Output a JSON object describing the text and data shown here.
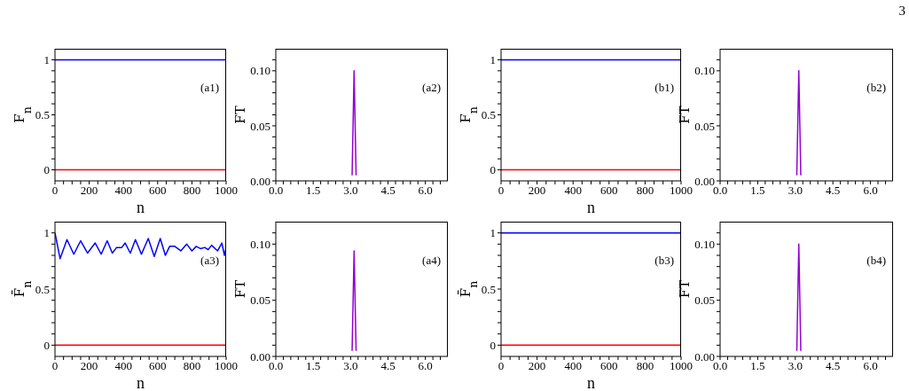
{
  "chart_data": [
    {
      "type": "line",
      "ylabel": "F$_{n}$",
      "xlabel": "n",
      "annotations": [
        "(a1)"
      ],
      "grid": false,
      "marker": "none",
      "line_style": "solid",
      "xlim": [
        0,
        1000
      ],
      "ylim": [
        -0.1,
        1.1
      ],
      "xticks": [
        0,
        {
          "value": 50,
          "label": null
        },
        {
          "value": 100,
          "label": null
        },
        {
          "value": 150,
          "label": null
        },
        200,
        {
          "value": 250,
          "label": null
        },
        {
          "value": 300,
          "label": null
        },
        {
          "value": 350,
          "label": null
        },
        400,
        {
          "value": 450,
          "label": null
        },
        {
          "value": 500,
          "label": null
        },
        {
          "value": 550,
          "label": null
        },
        600,
        {
          "value": 650,
          "label": null
        },
        {
          "value": 700,
          "label": null
        },
        {
          "value": 750,
          "label": null
        },
        800,
        {
          "value": 850,
          "label": null
        },
        {
          "value": 900,
          "label": null
        },
        {
          "value": 950,
          "label": null
        },
        1000
      ],
      "yticks": [
        0,
        {
          "value": 0.1,
          "label": null
        },
        {
          "value": 0.2,
          "label": null
        },
        {
          "value": 0.3,
          "label": null
        },
        {
          "value": 0.4,
          "label": null
        },
        0.5,
        {
          "value": 0.6,
          "label": null
        },
        {
          "value": 0.7,
          "label": null
        },
        {
          "value": 0.8,
          "label": null
        },
        {
          "value": 0.9,
          "label": null
        },
        1
      ],
      "series": [
        {
          "color": "#0000ff",
          "x": [
            0,
            1000
          ],
          "values": [
            1,
            1
          ]
        },
        {
          "color": "#ff0000",
          "x": [
            0,
            1000
          ],
          "values": [
            0,
            0
          ]
        }
      ]
    },
    {
      "type": "line",
      "ylabel": "FT",
      "annotations": [
        "(a2)"
      ],
      "grid": false,
      "marker": "none",
      "line_style": "solid",
      "xlim": [
        0,
        6.9
      ],
      "ylim": [
        0,
        0.12
      ],
      "xticks": [
        {
          "value": 0,
          "label": "0.0"
        },
        {
          "value": 0.3,
          "label": null
        },
        {
          "value": 0.6,
          "label": null
        },
        {
          "value": 0.9,
          "label": null
        },
        {
          "value": 1.2,
          "label": null
        },
        1.5,
        {
          "value": 1.8,
          "label": null
        },
        {
          "value": 2.1,
          "label": null
        },
        {
          "value": 2.4,
          "label": null
        },
        {
          "value": 2.7,
          "label": null
        },
        {
          "value": 3,
          "label": "3.0"
        },
        {
          "value": 3.3,
          "label": null
        },
        {
          "value": 3.6,
          "label": null
        },
        {
          "value": 3.9,
          "label": null
        },
        {
          "value": 4.2,
          "label": null
        },
        4.5,
        {
          "value": 4.8,
          "label": null
        },
        {
          "value": 5.1,
          "label": null
        },
        {
          "value": 5.4,
          "label": null
        },
        {
          "value": 5.7,
          "label": null
        },
        {
          "value": 6,
          "label": "6.0"
        },
        {
          "value": 6.3,
          "label": null
        },
        {
          "value": 6.6,
          "label": null
        }
      ],
      "yticks": [
        {
          "value": 0,
          "label": "0.00"
        },
        {
          "value": 0.01,
          "label": null
        },
        {
          "value": 0.02,
          "label": null
        },
        {
          "value": 0.03,
          "label": null
        },
        {
          "value": 0.04,
          "label": null
        },
        0.05,
        {
          "value": 0.06,
          "label": null
        },
        {
          "value": 0.07,
          "label": null
        },
        {
          "value": 0.08,
          "label": null
        },
        {
          "value": 0.09,
          "label": null
        },
        {
          "value": 0.1,
          "label": "0.10"
        },
        {
          "value": 0.11,
          "label": null
        }
      ],
      "series": [
        {
          "color": "#9400d3",
          "x": [
            3.06,
            3.14,
            3.22
          ],
          "values": [
            0.005,
            0.1,
            0.005
          ]
        }
      ]
    },
    {
      "type": "line",
      "ylabel": "F$_{n}$",
      "xlabel": "n",
      "annotations": [
        "(b1)"
      ],
      "grid": false,
      "marker": "none",
      "line_style": "solid",
      "xlim": [
        0,
        1000
      ],
      "ylim": [
        -0.1,
        1.1
      ],
      "xticks": [
        0,
        {
          "value": 50,
          "label": null
        },
        {
          "value": 100,
          "label": null
        },
        {
          "value": 150,
          "label": null
        },
        200,
        {
          "value": 250,
          "label": null
        },
        {
          "value": 300,
          "label": null
        },
        {
          "value": 350,
          "label": null
        },
        400,
        {
          "value": 450,
          "label": null
        },
        {
          "value": 500,
          "label": null
        },
        {
          "value": 550,
          "label": null
        },
        600,
        {
          "value": 650,
          "label": null
        },
        {
          "value": 700,
          "label": null
        },
        {
          "value": 750,
          "label": null
        },
        800,
        {
          "value": 850,
          "label": null
        },
        {
          "value": 900,
          "label": null
        },
        {
          "value": 950,
          "label": null
        },
        1000
      ],
      "yticks": [
        0,
        {
          "value": 0.1,
          "label": null
        },
        {
          "value": 0.2,
          "label": null
        },
        {
          "value": 0.3,
          "label": null
        },
        {
          "value": 0.4,
          "label": null
        },
        0.5,
        {
          "value": 0.6,
          "label": null
        },
        {
          "value": 0.7,
          "label": null
        },
        {
          "value": 0.8,
          "label": null
        },
        {
          "value": 0.9,
          "label": null
        },
        1
      ],
      "series": [
        {
          "color": "#0000ff",
          "x": [
            0,
            1000
          ],
          "values": [
            1,
            1
          ]
        },
        {
          "color": "#ff0000",
          "x": [
            0,
            1000
          ],
          "values": [
            0,
            0
          ]
        }
      ]
    },
    {
      "type": "line",
      "ylabel": "FT",
      "annotations": [
        "(b2)",
        "3"
      ],
      "grid": false,
      "marker": "none",
      "line_style": "solid",
      "xlim": [
        0,
        6.9
      ],
      "ylim": [
        0,
        0.12
      ],
      "xticks": [
        {
          "value": 0,
          "label": "0.0"
        },
        {
          "value": 0.3,
          "label": null
        },
        {
          "value": 0.6,
          "label": null
        },
        {
          "value": 0.9,
          "label": null
        },
        {
          "value": 1.2,
          "label": null
        },
        1.5,
        {
          "value": 1.8,
          "label": null
        },
        {
          "value": 2.1,
          "label": null
        },
        {
          "value": 2.4,
          "label": null
        },
        {
          "value": 2.7,
          "label": null
        },
        {
          "value": 3,
          "label": "3.0"
        },
        {
          "value": 3.3,
          "label": null
        },
        {
          "value": 3.6,
          "label": null
        },
        {
          "value": 3.9,
          "label": null
        },
        {
          "value": 4.2,
          "label": null
        },
        4.5,
        {
          "value": 4.8,
          "label": null
        },
        {
          "value": 5.1,
          "label": null
        },
        {
          "value": 5.4,
          "label": null
        },
        {
          "value": 5.7,
          "label": null
        },
        {
          "value": 6,
          "label": "6.0"
        },
        {
          "value": 6.3,
          "label": null
        },
        {
          "value": 6.6,
          "label": null
        }
      ],
      "yticks": [
        {
          "value": 0,
          "label": "0.00"
        },
        {
          "value": 0.01,
          "label": null
        },
        {
          "value": 0.02,
          "label": null
        },
        {
          "value": 0.03,
          "label": null
        },
        {
          "value": 0.04,
          "label": null
        },
        0.05,
        {
          "value": 0.06,
          "label": null
        },
        {
          "value": 0.07,
          "label": null
        },
        {
          "value": 0.08,
          "label": null
        },
        {
          "value": 0.09,
          "label": null
        },
        {
          "value": 0.1,
          "label": "0.10"
        },
        {
          "value": 0.11,
          "label": null
        }
      ],
      "series": [
        {
          "color": "#9400d3",
          "x": [
            3.06,
            3.14,
            3.22
          ],
          "values": [
            0.005,
            0.1,
            0.005
          ]
        }
      ]
    },
    {
      "type": "line",
      "ylabel": "F̄$_{n}$",
      "xlabel": "n",
      "annotations": [
        "(a3)"
      ],
      "grid": false,
      "marker": "none",
      "line_style": "solid",
      "xlim": [
        0,
        1000
      ],
      "ylim": [
        -0.1,
        1.1
      ],
      "xticks": [
        0,
        {
          "value": 50,
          "label": null
        },
        {
          "value": 100,
          "label": null
        },
        {
          "value": 150,
          "label": null
        },
        200,
        {
          "value": 250,
          "label": null
        },
        {
          "value": 300,
          "label": null
        },
        {
          "value": 350,
          "label": null
        },
        400,
        {
          "value": 450,
          "label": null
        },
        {
          "value": 500,
          "label": null
        },
        {
          "value": 550,
          "label": null
        },
        600,
        {
          "value": 650,
          "label": null
        },
        {
          "value": 700,
          "label": null
        },
        {
          "value": 750,
          "label": null
        },
        800,
        {
          "value": 850,
          "label": null
        },
        {
          "value": 900,
          "label": null
        },
        {
          "value": 950,
          "label": null
        },
        1000
      ],
      "yticks": [
        0,
        {
          "value": 0.1,
          "label": null
        },
        {
          "value": 0.2,
          "label": null
        },
        {
          "value": 0.3,
          "label": null
        },
        {
          "value": 0.4,
          "label": null
        },
        0.5,
        {
          "value": 0.6,
          "label": null
        },
        {
          "value": 0.7,
          "label": null
        },
        {
          "value": 0.8,
          "label": null
        },
        {
          "value": 0.9,
          "label": null
        },
        1
      ],
      "series": [
        {
          "color": "#0000ff",
          "x": [
            0,
            30,
            70,
            110,
            150,
            190,
            235,
            270,
            305,
            335,
            360,
            390,
            410,
            440,
            470,
            505,
            545,
            580,
            615,
            645,
            670,
            700,
            735,
            770,
            800,
            825,
            850,
            875,
            895,
            915,
            950,
            975,
            990,
            1000
          ],
          "values": [
            1,
            0.77,
            0.94,
            0.81,
            0.93,
            0.82,
            0.91,
            0.81,
            0.93,
            0.82,
            0.87,
            0.87,
            0.91,
            0.82,
            0.94,
            0.81,
            0.95,
            0.79,
            0.95,
            0.8,
            0.88,
            0.88,
            0.84,
            0.9,
            0.84,
            0.88,
            0.86,
            0.87,
            0.85,
            0.89,
            0.84,
            0.91,
            0.8,
            0.87
          ]
        },
        {
          "color": "#ff0000",
          "x": [
            0,
            1000
          ],
          "values": [
            0,
            0
          ]
        }
      ]
    },
    {
      "type": "line",
      "ylabel": "FT",
      "annotations": [
        "(a4)"
      ],
      "grid": false,
      "marker": "none",
      "line_style": "solid",
      "xlim": [
        0,
        6.9
      ],
      "ylim": [
        0,
        0.12
      ],
      "xticks": [
        {
          "value": 0,
          "label": "0.0"
        },
        {
          "value": 0.3,
          "label": null
        },
        {
          "value": 0.6,
          "label": null
        },
        {
          "value": 0.9,
          "label": null
        },
        {
          "value": 1.2,
          "label": null
        },
        1.5,
        {
          "value": 1.8,
          "label": null
        },
        {
          "value": 2.1,
          "label": null
        },
        {
          "value": 2.4,
          "label": null
        },
        {
          "value": 2.7,
          "label": null
        },
        {
          "value": 3,
          "label": "3.0"
        },
        {
          "value": 3.3,
          "label": null
        },
        {
          "value": 3.6,
          "label": null
        },
        {
          "value": 3.9,
          "label": null
        },
        {
          "value": 4.2,
          "label": null
        },
        4.5,
        {
          "value": 4.8,
          "label": null
        },
        {
          "value": 5.1,
          "label": null
        },
        {
          "value": 5.4,
          "label": null
        },
        {
          "value": 5.7,
          "label": null
        },
        {
          "value": 6,
          "label": "6.0"
        },
        {
          "value": 6.3,
          "label": null
        },
        {
          "value": 6.6,
          "label": null
        }
      ],
      "yticks": [
        {
          "value": 0,
          "label": "0.00"
        },
        {
          "value": 0.01,
          "label": null
        },
        {
          "value": 0.02,
          "label": null
        },
        {
          "value": 0.03,
          "label": null
        },
        {
          "value": 0.04,
          "label": null
        },
        0.05,
        {
          "value": 0.06,
          "label": null
        },
        {
          "value": 0.07,
          "label": null
        },
        {
          "value": 0.08,
          "label": null
        },
        {
          "value": 0.09,
          "label": null
        },
        {
          "value": 0.1,
          "label": "0.10"
        },
        {
          "value": 0.11,
          "label": null
        }
      ],
      "series": [
        {
          "color": "#9400d3",
          "x": [
            3.06,
            3.14,
            3.22
          ],
          "values": [
            0.005,
            0.094,
            0.005
          ]
        }
      ]
    },
    {
      "type": "line",
      "ylabel": "F̄$_{n}$",
      "xlabel": "n",
      "annotations": [
        "(b3)"
      ],
      "grid": false,
      "marker": "none",
      "line_style": "solid",
      "xlim": [
        0,
        1000
      ],
      "ylim": [
        -0.1,
        1.1
      ],
      "xticks": [
        0,
        {
          "value": 50,
          "label": null
        },
        {
          "value": 100,
          "label": null
        },
        {
          "value": 150,
          "label": null
        },
        200,
        {
          "value": 250,
          "label": null
        },
        {
          "value": 300,
          "label": null
        },
        {
          "value": 350,
          "label": null
        },
        400,
        {
          "value": 450,
          "label": null
        },
        {
          "value": 500,
          "label": null
        },
        {
          "value": 550,
          "label": null
        },
        600,
        {
          "value": 650,
          "label": null
        },
        {
          "value": 700,
          "label": null
        },
        {
          "value": 750,
          "label": null
        },
        800,
        {
          "value": 850,
          "label": null
        },
        {
          "value": 900,
          "label": null
        },
        {
          "value": 950,
          "label": null
        },
        1000
      ],
      "yticks": [
        0,
        {
          "value": 0.1,
          "label": null
        },
        {
          "value": 0.2,
          "label": null
        },
        {
          "value": 0.3,
          "label": null
        },
        {
          "value": 0.4,
          "label": null
        },
        0.5,
        {
          "value": 0.6,
          "label": null
        },
        {
          "value": 0.7,
          "label": null
        },
        {
          "value": 0.8,
          "label": null
        },
        {
          "value": 0.9,
          "label": null
        },
        1
      ],
      "series": [
        {
          "color": "#0000ff",
          "x": [
            0,
            1000
          ],
          "values": [
            1,
            1
          ]
        },
        {
          "color": "#ff0000",
          "x": [
            0,
            1000
          ],
          "values": [
            0,
            0
          ]
        }
      ]
    },
    {
      "type": "line",
      "ylabel": "FT",
      "annotations": [
        "(b4)"
      ],
      "grid": false,
      "marker": "none",
      "line_style": "solid",
      "xlim": [
        0,
        6.9
      ],
      "ylim": [
        0,
        0.12
      ],
      "xticks": [
        {
          "value": 0,
          "label": "0.0"
        },
        {
          "value": 0.3,
          "label": null
        },
        {
          "value": 0.6,
          "label": null
        },
        {
          "value": 0.9,
          "label": null
        },
        {
          "value": 1.2,
          "label": null
        },
        1.5,
        {
          "value": 1.8,
          "label": null
        },
        {
          "value": 2.1,
          "label": null
        },
        {
          "value": 2.4,
          "label": null
        },
        {
          "value": 2.7,
          "label": null
        },
        {
          "value": 3,
          "label": "3.0"
        },
        {
          "value": 3.3,
          "label": null
        },
        {
          "value": 3.6,
          "label": null
        },
        {
          "value": 3.9,
          "label": null
        },
        {
          "value": 4.2,
          "label": null
        },
        4.5,
        {
          "value": 4.8,
          "label": null
        },
        {
          "value": 5.1,
          "label": null
        },
        {
          "value": 5.4,
          "label": null
        },
        {
          "value": 5.7,
          "label": null
        },
        {
          "value": 6,
          "label": "6.0"
        },
        {
          "value": 6.3,
          "label": null
        },
        {
          "value": 6.6,
          "label": null
        }
      ],
      "yticks": [
        {
          "value": 0,
          "label": "0.00"
        },
        {
          "value": 0.01,
          "label": null
        },
        {
          "value": 0.02,
          "label": null
        },
        {
          "value": 0.03,
          "label": null
        },
        {
          "value": 0.04,
          "label": null
        },
        0.05,
        {
          "value": 0.06,
          "label": null
        },
        {
          "value": 0.07,
          "label": null
        },
        {
          "value": 0.08,
          "label": null
        },
        {
          "value": 0.09,
          "label": null
        },
        {
          "value": 0.1,
          "label": "0.10"
        },
        {
          "value": 0.11,
          "label": null
        }
      ],
      "series": [
        {
          "color": "#9400d3",
          "x": [
            3.06,
            3.14,
            3.22
          ],
          "values": [
            0.005,
            0.1,
            0.005
          ]
        }
      ]
    }
  ]
}
